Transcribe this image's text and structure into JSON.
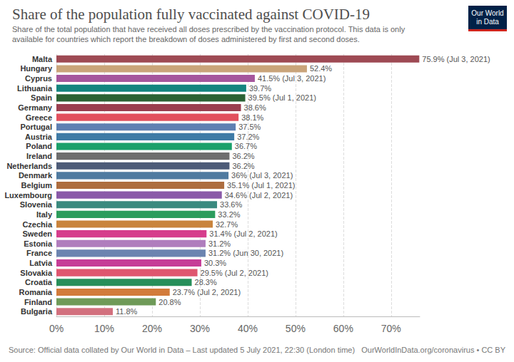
{
  "chart_data": {
    "type": "bar",
    "orientation": "horizontal",
    "title": "Share of the population fully vaccinated against COVID-19",
    "subtitle": [
      "Share of the total population that have received all doses prescribed by the vaccination protocol. This data is only",
      "available for countries which report the breakdown of doses administered by first and second doses."
    ],
    "logo": "Our World in Data",
    "source": "Source: Official data collated by Our World in Data – Last updated 5 July 2021, 22:30 (London time)",
    "credit": "OurWorldInData.org/coronavirus • CC BY",
    "categories": [
      "Malta",
      "Hungary",
      "Cyprus",
      "Lithuania",
      "Spain",
      "Germany",
      "Greece",
      "Portugal",
      "Austria",
      "Poland",
      "Ireland",
      "Netherlands",
      "Denmark",
      "Belgium",
      "Luxembourg",
      "Slovenia",
      "Italy",
      "Czechia",
      "Sweden",
      "Estonia",
      "France",
      "Latvia",
      "Slovakia",
      "Croatia",
      "Romania",
      "Finland",
      "Bulgaria"
    ],
    "values": [
      75.9,
      52.4,
      41.5,
      39.7,
      39.5,
      38.6,
      38.1,
      37.5,
      37.2,
      36.7,
      36.2,
      36.2,
      36,
      35.1,
      34.6,
      33.6,
      33.2,
      32.7,
      31.4,
      31.2,
      31.2,
      30.3,
      29.5,
      28.3,
      23.7,
      20.8,
      11.8
    ],
    "value_labels": [
      "75.9% (Jul 3, 2021)",
      "52.4%",
      "41.5% (Jul 3, 2021)",
      "39.7%",
      "39.5% (Jul 1, 2021)",
      "38.6%",
      "38.1%",
      "37.5%",
      "37.2%",
      "36.7%",
      "36.2%",
      "36.2%",
      "36% (Jul 3, 2021)",
      "35.1% (Jul 1, 2021)",
      "34.6% (Jul 2, 2021)",
      "33.6%",
      "33.2%",
      "32.7%",
      "31.4% (Jul 2, 2021)",
      "31.2%",
      "31.2% (Jun 30, 2021)",
      "30.3%",
      "29.5% (Jul 2, 2021)",
      "28.3%",
      "23.7% (Jul 2, 2021)",
      "20.8%",
      "11.8%"
    ],
    "colors": [
      "#9e4a54",
      "#c9a47a",
      "#a5569d",
      "#13857f",
      "#2b6234",
      "#9a3e4f",
      "#e2505e",
      "#5f80b2",
      "#3f7ba6",
      "#1ba06a",
      "#6e6e6e",
      "#4d5b78",
      "#4f7aa0",
      "#ad6d3f",
      "#8a5aa8",
      "#3a8a7f",
      "#2c9c5c",
      "#c9843d",
      "#d63d8c",
      "#b07dbd",
      "#6b84b0",
      "#c63d97",
      "#df566f",
      "#278f5a",
      "#d27b3b",
      "#6f9a58",
      "#d2707e"
    ],
    "data_labels": true,
    "xlim": [
      0,
      76
    ],
    "xticks": [
      {
        "value": 0,
        "label": "0%"
      },
      {
        "value": 10,
        "label": "10%"
      },
      {
        "value": 20,
        "label": "20%"
      },
      {
        "value": 30,
        "label": "30%"
      },
      {
        "value": 40,
        "label": "40%"
      },
      {
        "value": 50,
        "label": "50%"
      },
      {
        "value": 60,
        "label": "60%"
      },
      {
        "value": 70,
        "label": "70%"
      }
    ],
    "grid": true
  }
}
